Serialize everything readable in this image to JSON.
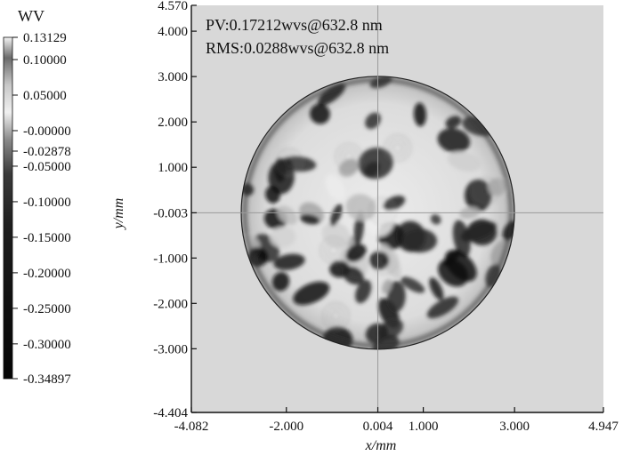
{
  "chart_data": {
    "type": "heatmap",
    "description_kind": "surface-wavefront-map",
    "unit_label": "WV",
    "annotations": [
      {
        "id": "pv",
        "text": "PV:0.17212wvs@632.8 nm"
      },
      {
        "id": "rms",
        "text": "RMS:0.0288wvs@632.8 nm"
      }
    ],
    "xlabel": "x/mm",
    "ylabel": "y/mm",
    "xlim": [
      -4.082,
      4.947
    ],
    "ylim": [
      -4.404,
      4.57
    ],
    "x_ticks": [
      {
        "value": -4.082,
        "label": "-4.082"
      },
      {
        "value": -2.0,
        "label": "-2.000"
      },
      {
        "value": 0.004,
        "label": "0.004"
      },
      {
        "value": 1.0,
        "label": "1.000"
      },
      {
        "value": 3.0,
        "label": "3.000"
      },
      {
        "value": 4.947,
        "label": "4.947"
      }
    ],
    "y_ticks": [
      {
        "value": 4.57,
        "label": "4.570"
      },
      {
        "value": 4.0,
        "label": "4.000"
      },
      {
        "value": 3.0,
        "label": "3.000"
      },
      {
        "value": 2.0,
        "label": "2.000"
      },
      {
        "value": 1.0,
        "label": "1.000"
      },
      {
        "value": -0.003,
        "label": "-0.003"
      },
      {
        "value": -1.0,
        "label": "-1.000"
      },
      {
        "value": -2.0,
        "label": "-2.000"
      },
      {
        "value": -3.0,
        "label": "-3.000"
      },
      {
        "value": -4.404,
        "label": "-4.404"
      }
    ],
    "crosshair": {
      "x": 0.004,
      "y": -0.003
    },
    "aperture": {
      "center_x": 0.004,
      "center_y": -0.003,
      "radius": 3.0
    },
    "colorbar": {
      "min": -0.34897,
      "max": 0.13129,
      "colormap": "grayscale",
      "ticks": [
        {
          "value": 0.13129,
          "label": "0.13129"
        },
        {
          "value": 0.1,
          "label": "0.10000"
        },
        {
          "value": 0.05,
          "label": "0.05000"
        },
        {
          "value": -0.0,
          "label": "-0.00000"
        },
        {
          "value": -0.02878,
          "label": "-0.02878"
        },
        {
          "value": -0.05,
          "label": "-0.05000"
        },
        {
          "value": -0.1,
          "label": "-0.10000"
        },
        {
          "value": -0.15,
          "label": "-0.15000"
        },
        {
          "value": -0.2,
          "label": "-0.20000"
        },
        {
          "value": -0.25,
          "label": "-0.25000"
        },
        {
          "value": -0.3,
          "label": "-0.30000"
        },
        {
          "value": -0.34897,
          "label": "-0.34897"
        }
      ]
    },
    "colors": {
      "plot_background": "#d8d8d8",
      "crosshair": "#9a9a9a",
      "axis": "#111111"
    }
  }
}
